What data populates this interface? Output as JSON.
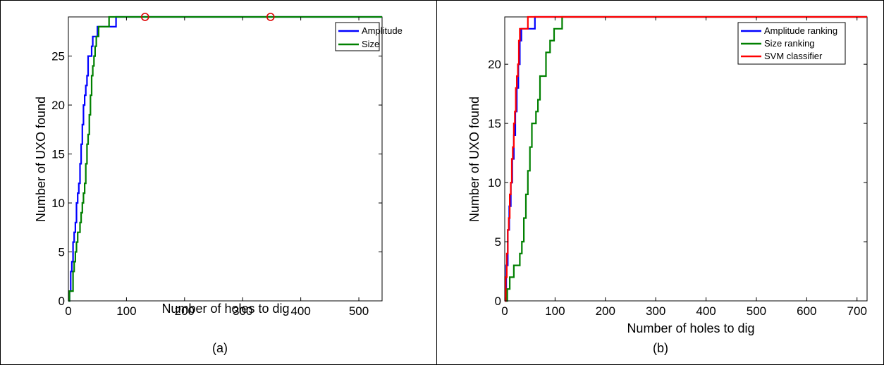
{
  "chart_data": [
    {
      "type": "line",
      "caption": "(a)",
      "xlabel": "Number of holes to dig",
      "ylabel": "Number of UXO found",
      "xlim": [
        0,
        540
      ],
      "ylim": [
        0,
        29
      ],
      "xticks": [
        0,
        100,
        200,
        300,
        400,
        500
      ],
      "yticks": [
        0,
        5,
        10,
        15,
        20,
        25
      ],
      "grid": false,
      "legend_position": "top-right",
      "series": [
        {
          "name": "Amplitude",
          "color": "#0000ff",
          "x": [
            0,
            2,
            4,
            6,
            8,
            10,
            12,
            14,
            16,
            18,
            20,
            22,
            24,
            26,
            28,
            30,
            32,
            34,
            36,
            38,
            40,
            42,
            46,
            50,
            54,
            58,
            80,
            82,
            540
          ],
          "y": [
            0,
            1,
            3,
            4,
            6,
            7,
            8,
            10,
            11,
            12,
            14,
            16,
            18,
            20,
            21,
            22,
            23,
            25,
            25,
            25,
            26,
            27,
            27,
            28,
            28,
            28,
            28,
            29,
            29
          ]
        },
        {
          "name": "Size",
          "color": "#008000",
          "x": [
            0,
            2,
            6,
            8,
            10,
            12,
            14,
            16,
            18,
            20,
            22,
            24,
            26,
            28,
            30,
            32,
            34,
            36,
            38,
            40,
            42,
            44,
            46,
            48,
            50,
            52,
            54,
            60,
            66,
            68,
            70,
            540
          ],
          "y": [
            0,
            1,
            1,
            3,
            4,
            5,
            6,
            7,
            7,
            8,
            9,
            10,
            11,
            12,
            14,
            16,
            17,
            19,
            21,
            23,
            24,
            25,
            26,
            27,
            27,
            28,
            28,
            28,
            28,
            28,
            29,
            29
          ]
        }
      ],
      "markers": {
        "color": "#dd0000",
        "x": [
          132,
          348
        ],
        "y": [
          29,
          29
        ]
      }
    },
    {
      "type": "line",
      "caption": "(b)",
      "xlabel": "Number of holes to dig",
      "ylabel": "Number of UXO found",
      "xlim": [
        0,
        720
      ],
      "ylim": [
        0,
        24
      ],
      "xticks": [
        0,
        100,
        200,
        300,
        400,
        500,
        600,
        700
      ],
      "yticks": [
        0,
        5,
        10,
        15,
        20
      ],
      "grid": false,
      "legend_position": "top-right",
      "series": [
        {
          "name": "Amplitude ranking",
          "color": "#0000ff",
          "x": [
            0,
            3,
            6,
            9,
            12,
            15,
            18,
            21,
            24,
            27,
            30,
            33,
            36,
            40,
            46,
            52,
            56,
            60,
            62,
            720
          ],
          "y": [
            0,
            3,
            6,
            8,
            10,
            12,
            14,
            16,
            18,
            20,
            22,
            23,
            23,
            23,
            23,
            23,
            23,
            24,
            24,
            24
          ]
        },
        {
          "name": "Size ranking",
          "color": "#008000",
          "x": [
            0,
            5,
            10,
            14,
            18,
            22,
            26,
            30,
            34,
            38,
            42,
            46,
            50,
            54,
            58,
            62,
            66,
            70,
            74,
            78,
            82,
            86,
            90,
            94,
            98,
            102,
            106,
            110,
            114,
            118,
            720
          ],
          "y": [
            0,
            1,
            2,
            2,
            3,
            3,
            3,
            4,
            5,
            7,
            9,
            11,
            13,
            15,
            15,
            16,
            17,
            19,
            19,
            19,
            21,
            21,
            22,
            22,
            23,
            23,
            23,
            23,
            24,
            24,
            24
          ]
        },
        {
          "name": "SVM classifier",
          "color": "#ff0000",
          "x": [
            0,
            2,
            4,
            6,
            8,
            10,
            12,
            14,
            16,
            18,
            20,
            22,
            24,
            26,
            28,
            30,
            34,
            38,
            42,
            46,
            50,
            720
          ],
          "y": [
            0,
            2,
            4,
            6,
            7,
            9,
            10,
            12,
            13,
            15,
            16,
            18,
            19,
            20,
            22,
            23,
            23,
            23,
            23,
            24,
            24,
            24
          ]
        }
      ]
    }
  ]
}
